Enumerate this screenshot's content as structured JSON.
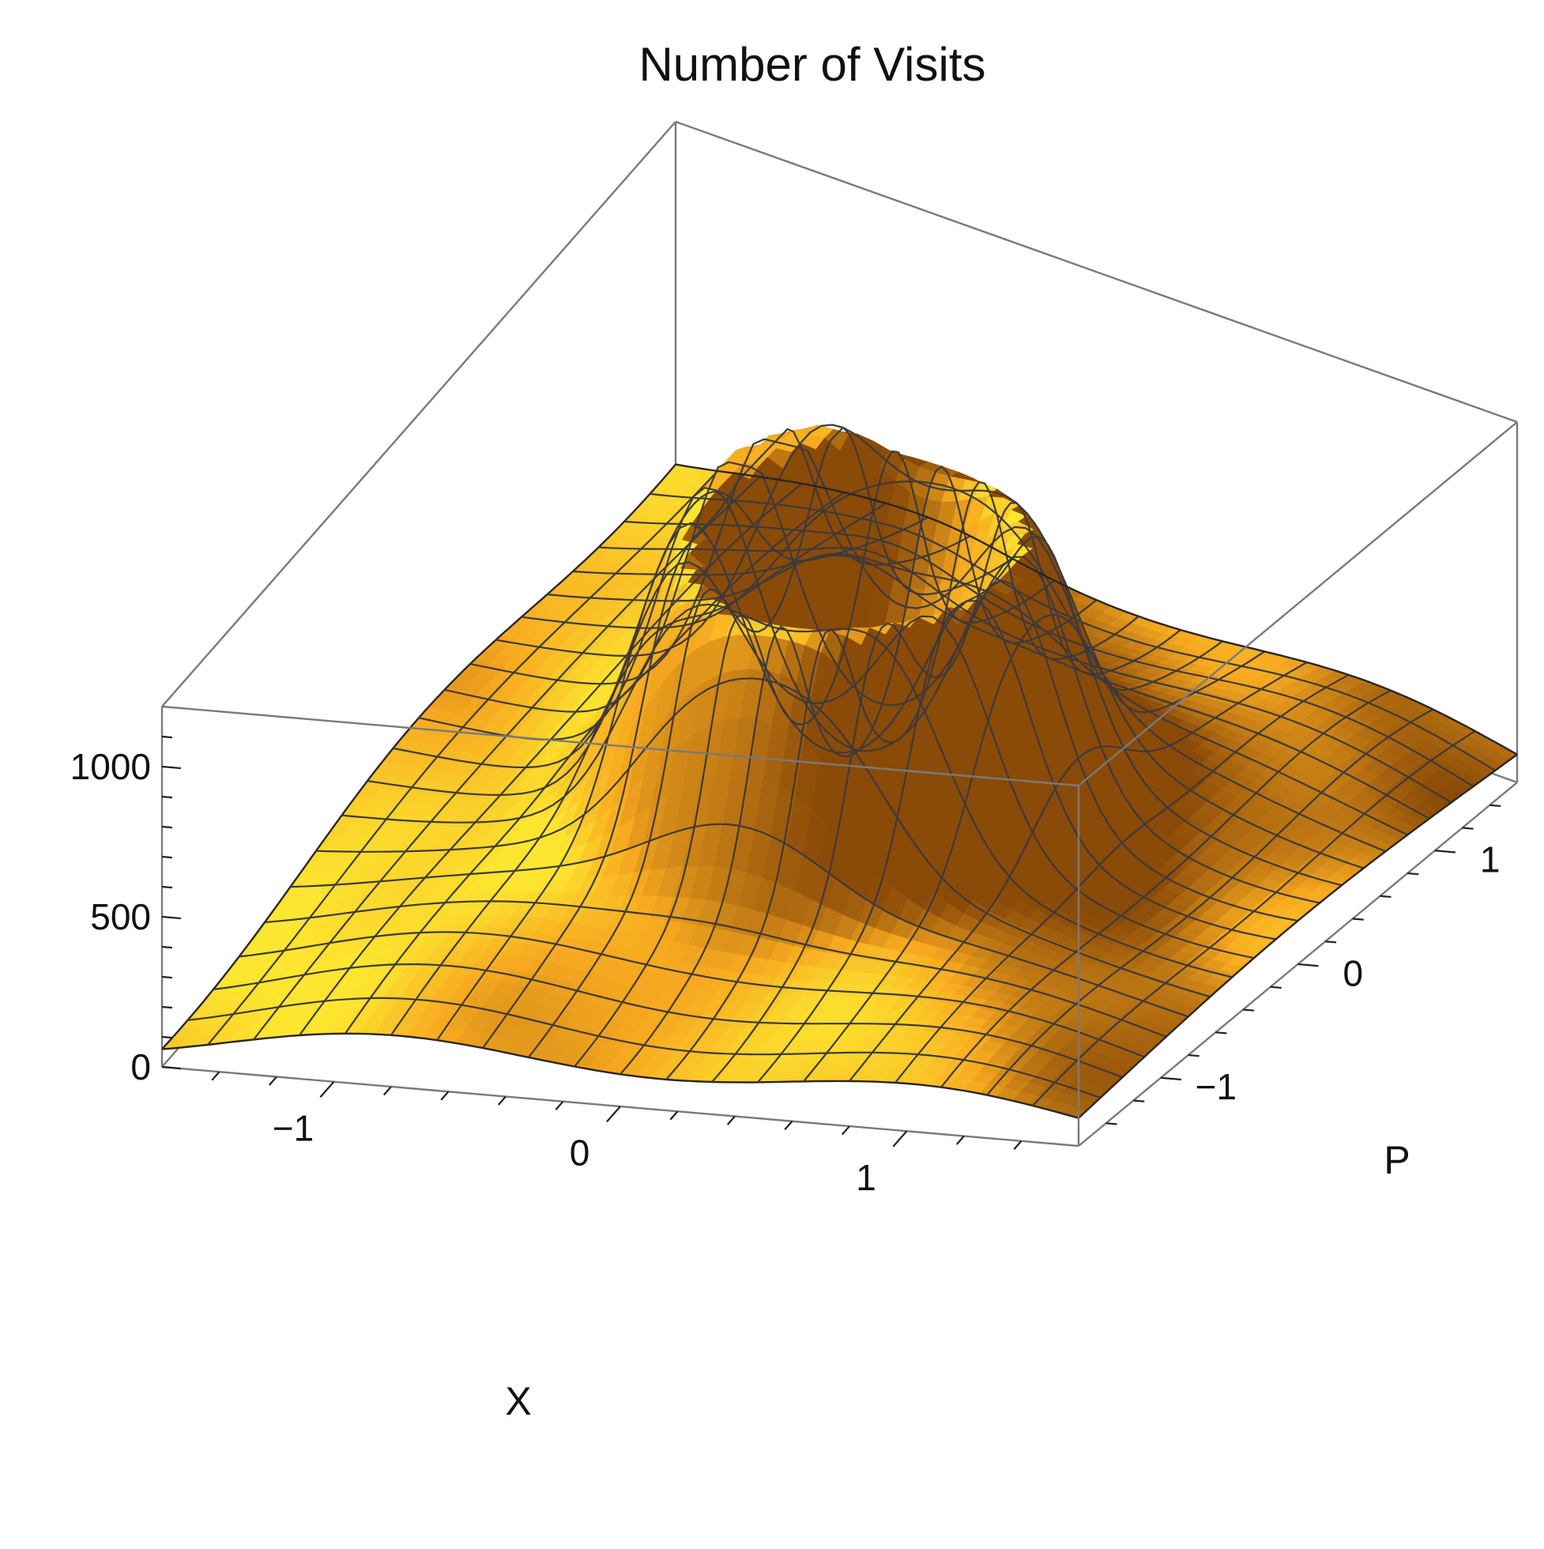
{
  "chart_data": {
    "type": "surface3d",
    "title": "Number of Visits",
    "xlabel": "X",
    "ylabel": "P",
    "zlabel": "",
    "xlim": [
      -1.6,
      1.6
    ],
    "ylim": [
      -1.6,
      1.6
    ],
    "zlim": [
      0,
      1200
    ],
    "x_ticks": [
      {
        "value": -1,
        "label": "−1"
      },
      {
        "value": 0,
        "label": "0"
      },
      {
        "value": 1,
        "label": "1"
      }
    ],
    "y_ticks": [
      {
        "value": -1,
        "label": "−1"
      },
      {
        "value": 0,
        "label": "0"
      },
      {
        "value": 1,
        "label": "1"
      }
    ],
    "z_ticks": [
      {
        "value": 0,
        "label": "0"
      },
      {
        "value": 500,
        "label": "500"
      },
      {
        "value": 1000,
        "label": "1000"
      }
    ],
    "mesh_lines": 20,
    "surface_model": {
      "baseline": 70,
      "ring_peak": 1050,
      "ring_radius": 0.55,
      "ring_width": 0.17,
      "spread": 0.9,
      "center_dip": 0.3
    },
    "colors": {
      "surface_light": "#fde630",
      "surface_mid": "#f7a920",
      "surface_dark": "#8a4a08",
      "mesh": "#3e3a3a",
      "box": "#7a7a7a"
    },
    "legend": "none",
    "grid": false
  }
}
